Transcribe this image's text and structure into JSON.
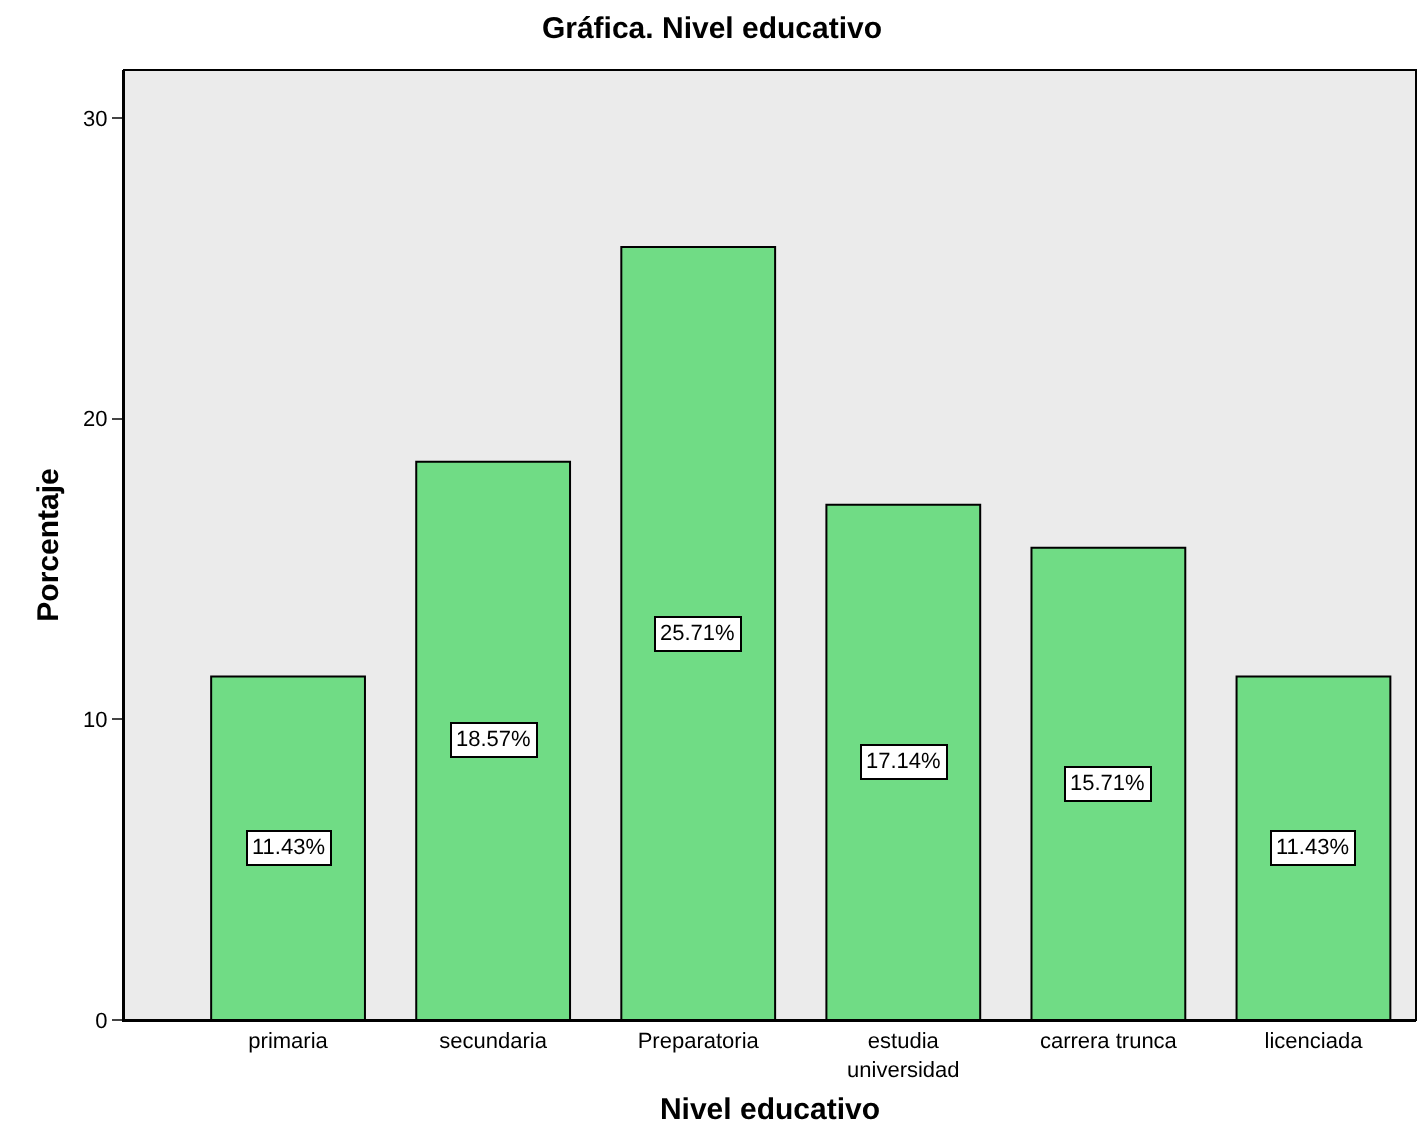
{
  "chart_data": {
    "type": "bar",
    "title": "Gráfica. Nivel educativo",
    "xlabel": "Nivel educativo",
    "ylabel": "Porcentaje",
    "categories": [
      "primaria",
      "secundaria",
      "Preparatoria",
      "estudia universidad",
      "carrera trunca",
      "licenciada"
    ],
    "values": [
      11.43,
      18.57,
      25.71,
      17.14,
      15.71,
      11.43
    ],
    "value_labels": [
      "11.43%",
      "18.57%",
      "25.71%",
      "17.14%",
      "15.71%",
      "11.43%"
    ],
    "color": "#70dc85",
    "ylim": [
      0,
      31.6
    ],
    "yticks": [
      0,
      10,
      20,
      30
    ],
    "grid": false,
    "legend": false
  }
}
